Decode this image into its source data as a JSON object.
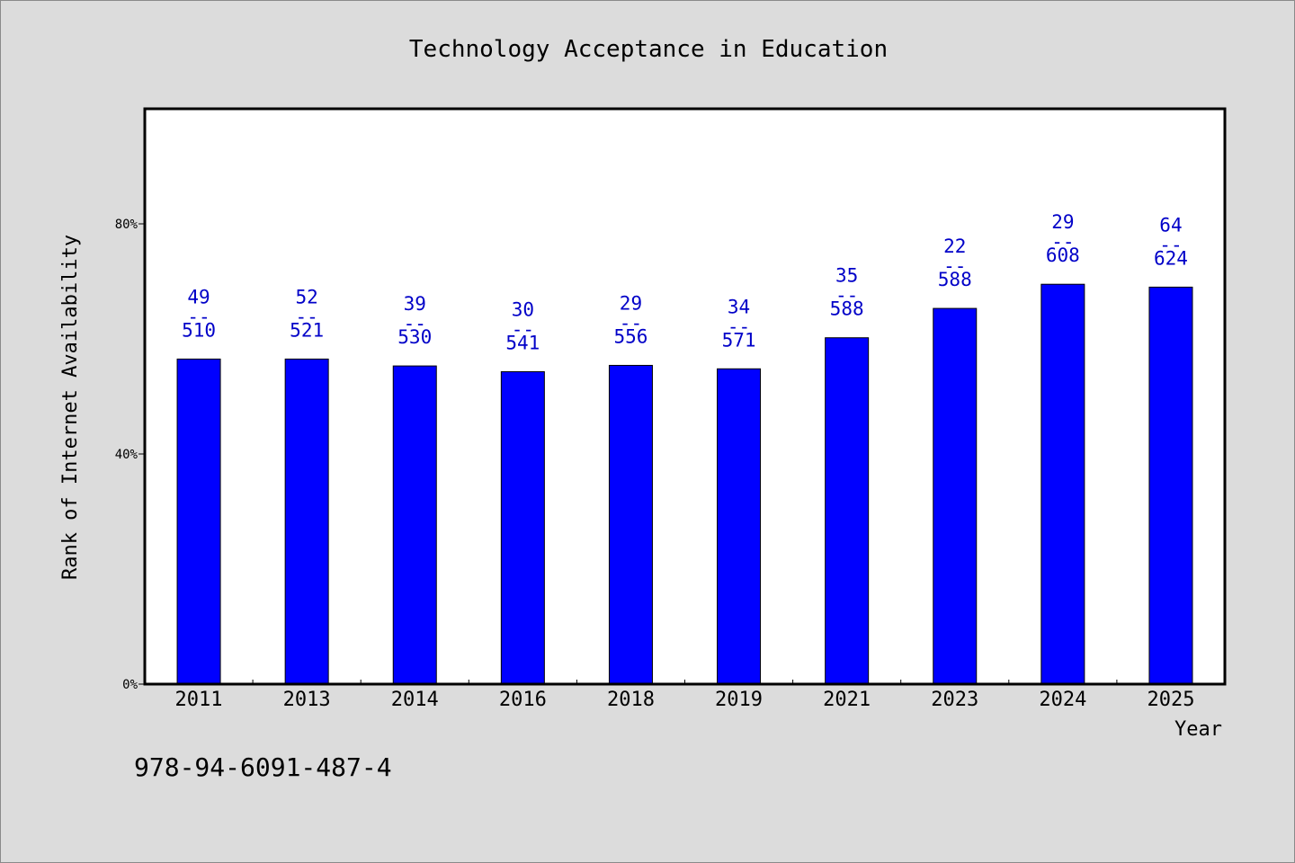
{
  "chart_data": {
    "type": "bar",
    "title": "Technology Acceptance in Education",
    "xlabel": "Year",
    "ylabel": "Rank of Internet Availability",
    "categories": [
      "2011",
      "2013",
      "2014",
      "2016",
      "2018",
      "2019",
      "2021",
      "2023",
      "2024",
      "2025"
    ],
    "values": [
      56.5,
      56.5,
      55.3,
      54.3,
      55.4,
      54.8,
      60.2,
      65.3,
      69.5,
      69.0
    ],
    "data_labels": [
      {
        "top": "49",
        "sep": "--",
        "bottom": "510"
      },
      {
        "top": "52",
        "sep": "--",
        "bottom": "521"
      },
      {
        "top": "39",
        "sep": "--",
        "bottom": "530"
      },
      {
        "top": "30",
        "sep": "--",
        "bottom": "541"
      },
      {
        "top": "29",
        "sep": "--",
        "bottom": "556"
      },
      {
        "top": "34",
        "sep": "--",
        "bottom": "571"
      },
      {
        "top": "35",
        "sep": "--",
        "bottom": "588"
      },
      {
        "top": "22",
        "sep": "--",
        "bottom": "588"
      },
      {
        "top": "29",
        "sep": "--",
        "bottom": "608"
      },
      {
        "top": "64",
        "sep": "--",
        "bottom": "624"
      }
    ],
    "ylim": [
      0,
      100
    ],
    "yticks": [
      {
        "value": 0,
        "label": "0%"
      },
      {
        "value": 40,
        "label": "40%"
      },
      {
        "value": 80,
        "label": "80%"
      }
    ],
    "grid": false,
    "legend": "none",
    "bar_color": "#0000ff",
    "label_color": "#0000c8",
    "background_color": "#dcdcdc",
    "plot_background": "#ffffff"
  },
  "footer": {
    "code": "978-94-6091-487-4"
  }
}
